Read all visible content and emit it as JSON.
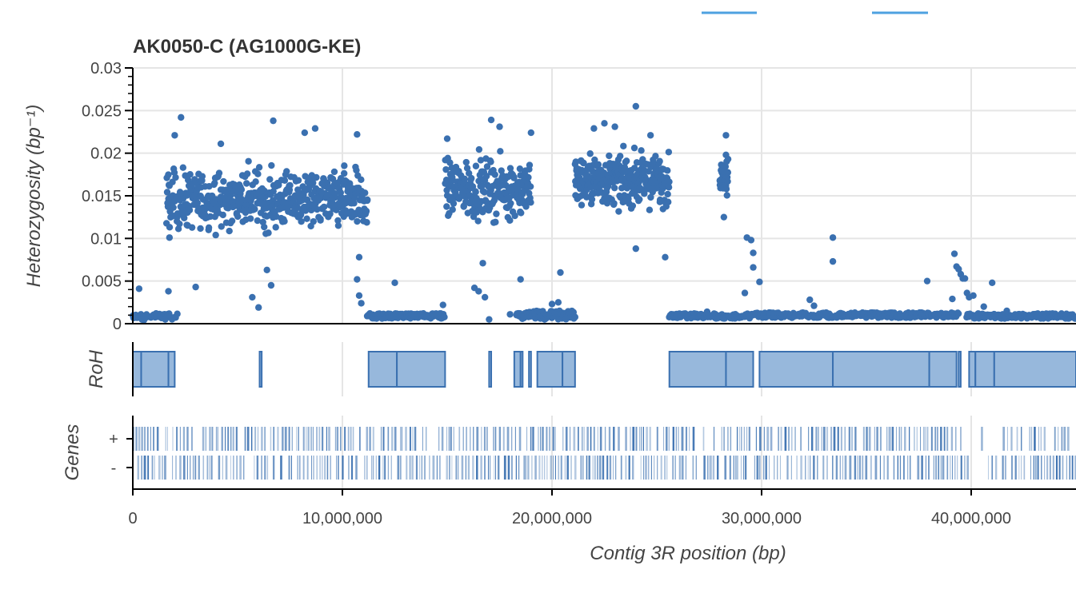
{
  "chart_data": {
    "type": "scatter",
    "title": "AK0050-C (AG1000G-KE)",
    "colors": {
      "points": "#3a70b0",
      "roh_fill": "#97b8dc",
      "roh_stroke": "#3a70b0",
      "genes": "#3a70b0",
      "grid": "#e5e5e5",
      "axis": "#000000",
      "legend": "#4ea1e0"
    },
    "xlabel": "Contig 3R position (bp)",
    "xlim": [
      0,
      45000000
    ],
    "xticks": [
      {
        "value": 0,
        "label": "0"
      },
      {
        "value": 10000000,
        "label": "10,000,000"
      },
      {
        "value": 20000000,
        "label": "20,000,000"
      },
      {
        "value": 30000000,
        "label": "30,000,000"
      },
      {
        "value": 40000000,
        "label": "40,000,000"
      }
    ],
    "heterozygosity": {
      "ylabel": "Heterozygosity (bp⁻¹)",
      "ylim": [
        0,
        0.03
      ],
      "yticks": [
        {
          "value": 0,
          "label": "0"
        },
        {
          "value": 0.005,
          "label": "0.005"
        },
        {
          "value": 0.01,
          "label": "0.01"
        },
        {
          "value": 0.015,
          "label": "0.015"
        },
        {
          "value": 0.02,
          "label": "0.02"
        },
        {
          "value": 0.025,
          "label": "0.025"
        },
        {
          "value": 0.03,
          "label": "0.03"
        }
      ],
      "grid": true,
      "clusters": [
        {
          "start": 0,
          "end": 2100000,
          "mean": 0.0008,
          "spread": 0.0004,
          "step": 60000
        },
        {
          "start": 1600000,
          "end": 11200000,
          "mean": 0.0145,
          "spread": 0.0032,
          "step": 18000
        },
        {
          "start": 11200000,
          "end": 14900000,
          "mean": 0.0009,
          "spread": 0.0003,
          "step": 40000
        },
        {
          "start": 14900000,
          "end": 19000000,
          "mean": 0.0158,
          "spread": 0.0032,
          "step": 18000
        },
        {
          "start": 18300000,
          "end": 21100000,
          "mean": 0.001,
          "spread": 0.0005,
          "step": 40000
        },
        {
          "start": 21100000,
          "end": 25600000,
          "mean": 0.0168,
          "spread": 0.0028,
          "step": 14000
        },
        {
          "start": 25600000,
          "end": 29600000,
          "mean": 0.0009,
          "spread": 0.0003,
          "step": 40000
        },
        {
          "start": 28000000,
          "end": 28400000,
          "mean": 0.017,
          "spread": 0.0025,
          "step": 15000
        },
        {
          "start": 29700000,
          "end": 39400000,
          "mean": 0.001,
          "spread": 0.0003,
          "step": 38000
        },
        {
          "start": 39800000,
          "end": 45000000,
          "mean": 0.0009,
          "spread": 0.0003,
          "step": 40000
        }
      ],
      "points": [
        [
          300000,
          0.0041
        ],
        [
          1700000,
          0.0038
        ],
        [
          2300000,
          0.0242
        ],
        [
          2000000,
          0.0221
        ],
        [
          1750000,
          0.0101
        ],
        [
          3000000,
          0.0043
        ],
        [
          4200000,
          0.0211
        ],
        [
          5700000,
          0.0031
        ],
        [
          6000000,
          0.0019
        ],
        [
          6400000,
          0.0063
        ],
        [
          6600000,
          0.0045
        ],
        [
          6700000,
          0.0238
        ],
        [
          8200000,
          0.0224
        ],
        [
          8700000,
          0.0229
        ],
        [
          10700000,
          0.0222
        ],
        [
          10800000,
          0.0078
        ],
        [
          10700000,
          0.0052
        ],
        [
          10800000,
          0.0033
        ],
        [
          10900000,
          0.0024
        ],
        [
          12500000,
          0.0048
        ],
        [
          14800000,
          0.0022
        ],
        [
          15000000,
          0.0217
        ],
        [
          16300000,
          0.0042
        ],
        [
          16500000,
          0.0038
        ],
        [
          16700000,
          0.0071
        ],
        [
          16800000,
          0.0031
        ],
        [
          17000000,
          0.0005
        ],
        [
          17100000,
          0.0239
        ],
        [
          17500000,
          0.0231
        ],
        [
          18000000,
          0.0011
        ],
        [
          18500000,
          0.0052
        ],
        [
          19000000,
          0.0224
        ],
        [
          20400000,
          0.006
        ],
        [
          20000000,
          0.0023
        ],
        [
          20300000,
          0.0025
        ],
        [
          22000000,
          0.0229
        ],
        [
          22500000,
          0.0235
        ],
        [
          23000000,
          0.0231
        ],
        [
          24000000,
          0.0255
        ],
        [
          24700000,
          0.0221
        ],
        [
          24000000,
          0.0088
        ],
        [
          25400000,
          0.0078
        ],
        [
          28300000,
          0.0221
        ],
        [
          28200000,
          0.0125
        ],
        [
          28300000,
          0.0198
        ],
        [
          28400000,
          0.0193
        ],
        [
          29300000,
          0.0101
        ],
        [
          29500000,
          0.0098
        ],
        [
          29600000,
          0.0083
        ],
        [
          29600000,
          0.0066
        ],
        [
          29900000,
          0.0049
        ],
        [
          29200000,
          0.0036
        ],
        [
          27400000,
          0.0014
        ],
        [
          32300000,
          0.0028
        ],
        [
          32500000,
          0.0021
        ],
        [
          33400000,
          0.0101
        ],
        [
          33400000,
          0.0073
        ],
        [
          37900000,
          0.005
        ],
        [
          39200000,
          0.0082
        ],
        [
          39300000,
          0.0067
        ],
        [
          39400000,
          0.0064
        ],
        [
          39500000,
          0.0058
        ],
        [
          39600000,
          0.0053
        ],
        [
          39700000,
          0.0053
        ],
        [
          39800000,
          0.0036
        ],
        [
          39900000,
          0.0031
        ],
        [
          40100000,
          0.0033
        ],
        [
          39100000,
          0.0029
        ],
        [
          41000000,
          0.0048
        ],
        [
          40600000,
          0.002
        ],
        [
          41700000,
          0.0015
        ]
      ]
    },
    "roh": {
      "ylabel": "RoH",
      "segments": [
        [
          0,
          400000
        ],
        [
          400000,
          1700000
        ],
        [
          1700000,
          2000000
        ],
        [
          6050000,
          6150000
        ],
        [
          11250000,
          12600000
        ],
        [
          12600000,
          14900000
        ],
        [
          17000000,
          17100000
        ],
        [
          18200000,
          18500000
        ],
        [
          18500000,
          18600000
        ],
        [
          18900000,
          19000000
        ],
        [
          19300000,
          20500000
        ],
        [
          20500000,
          21100000
        ],
        [
          25600000,
          28300000
        ],
        [
          28300000,
          29600000
        ],
        [
          29900000,
          33400000
        ],
        [
          33400000,
          38000000
        ],
        [
          38000000,
          39300000
        ],
        [
          39400000,
          39500000
        ],
        [
          39900000,
          40200000
        ],
        [
          40200000,
          41100000
        ],
        [
          41100000,
          45000000
        ]
      ]
    },
    "genes": {
      "ylabel": "Genes",
      "strands": [
        "+",
        "-"
      ],
      "plus_segments": [
        [
          0,
          26800000
        ],
        [
          27200000,
          31900000
        ],
        [
          32000000,
          39500000
        ],
        [
          40300000,
          40600000
        ],
        [
          41500000,
          45000000
        ]
      ],
      "minus_segments": [
        [
          0,
          15300000
        ],
        [
          15400000,
          26600000
        ],
        [
          26700000,
          39900000
        ],
        [
          40800000,
          45000000
        ]
      ]
    }
  }
}
